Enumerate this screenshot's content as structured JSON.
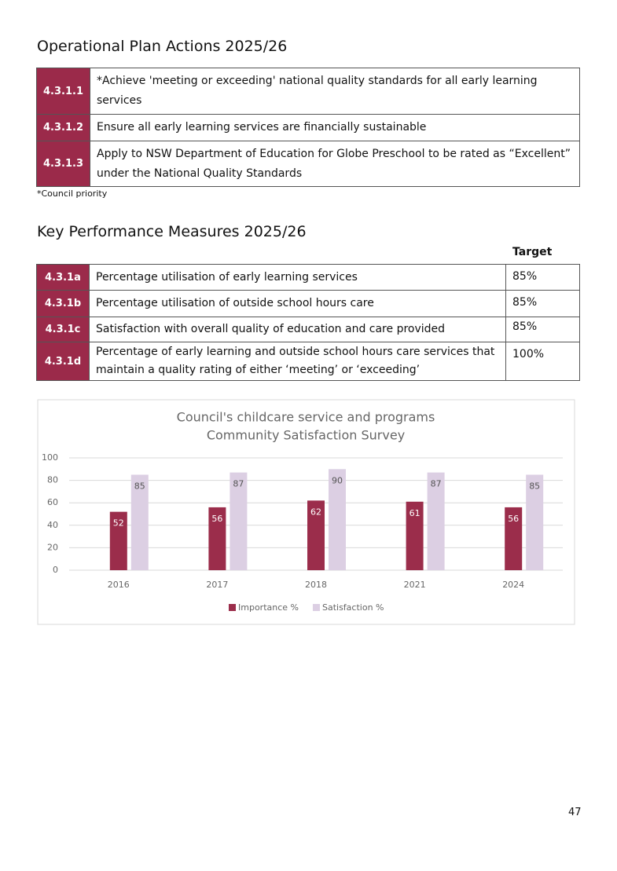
{
  "operational_plan": {
    "title": "Operational Plan Actions 2025/26",
    "rows": [
      {
        "code": "4.3.1.1",
        "text": "*Achieve 'meeting or exceeding' national quality standards for all early learning services"
      },
      {
        "code": "4.3.1.2",
        "text": "Ensure all early learning services are financially sustainable"
      },
      {
        "code": "4.3.1.3",
        "text": "Apply to NSW Department of Education for Globe Preschool to be rated as “Excellent” under the National Quality Standards"
      }
    ],
    "note": "*Council priority"
  },
  "kpi": {
    "title": "Key Performance Measures 2025/26",
    "target_header": "Target",
    "rows": [
      {
        "code": "4.3.1a",
        "text": "Percentage utilisation of early learning services",
        "target": "85%"
      },
      {
        "code": "4.3.1b",
        "text": "Percentage utilisation of outside school hours care",
        "target": "85%"
      },
      {
        "code": "4.3.1c",
        "text": "Satisfaction with overall quality of education and care provided",
        "target": "85%"
      },
      {
        "code": "4.3.1d",
        "text": "Percentage of early learning and outside school hours care services that maintain a quality rating of either ‘meeting’ or ‘exceeding’",
        "target": "100%"
      }
    ]
  },
  "chart_data": {
    "type": "bar",
    "title": "Council's childcare service and programs",
    "subtitle": "Community Satisfaction Survey",
    "categories": [
      "2016",
      "2017",
      "2018",
      "2021",
      "2024"
    ],
    "series": [
      {
        "name": "Importance %",
        "color": "#9b2d4b",
        "values": [
          52,
          56,
          62,
          61,
          56
        ]
      },
      {
        "name": "Satisfaction %",
        "color": "#dccfe3",
        "values": [
          85,
          87,
          90,
          87,
          85
        ]
      }
    ],
    "ylim": [
      0,
      100
    ],
    "yticks": [
      0,
      20,
      40,
      60,
      80,
      100
    ],
    "grid": true,
    "legend": "bottom"
  },
  "page_number": "47"
}
